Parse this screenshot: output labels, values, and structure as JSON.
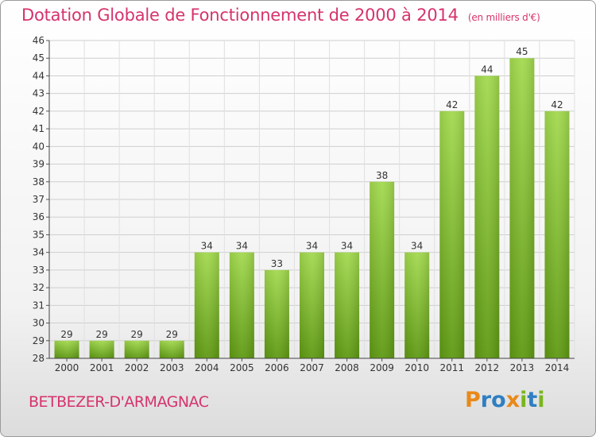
{
  "title": "Dotation Globale de Fonctionnement de 2000 à 2014",
  "unit": "(en milliers d'€)",
  "commune": "BETBEZER-D'ARMAGNAC",
  "logo": {
    "letters": [
      "P",
      "r",
      "o",
      "x",
      "i",
      "t",
      "i"
    ],
    "colors": [
      "#e8891a",
      "#2f7fc1",
      "#2f7fc1",
      "#e8891a",
      "#7ab51d",
      "#2f7fc1",
      "#7ab51d"
    ]
  },
  "colors": {
    "title": "#d6336c",
    "bar_light": "#9ed64a",
    "bar_dark": "#5f9a12",
    "grid": "#cfcfcf"
  },
  "chart_data": {
    "type": "bar",
    "categories": [
      "2000",
      "2001",
      "2002",
      "2003",
      "2004",
      "2005",
      "2006",
      "2007",
      "2008",
      "2009",
      "2010",
      "2011",
      "2012",
      "2013",
      "2014"
    ],
    "values": [
      29,
      29,
      29,
      29,
      34,
      34,
      33,
      34,
      34,
      38,
      34,
      42,
      44,
      45,
      42
    ],
    "ylim": [
      28,
      46
    ],
    "yticks": [
      28,
      29,
      30,
      31,
      32,
      33,
      34,
      35,
      36,
      37,
      38,
      39,
      40,
      41,
      42,
      43,
      44,
      45,
      46
    ],
    "grid": true,
    "data_labels": true
  }
}
